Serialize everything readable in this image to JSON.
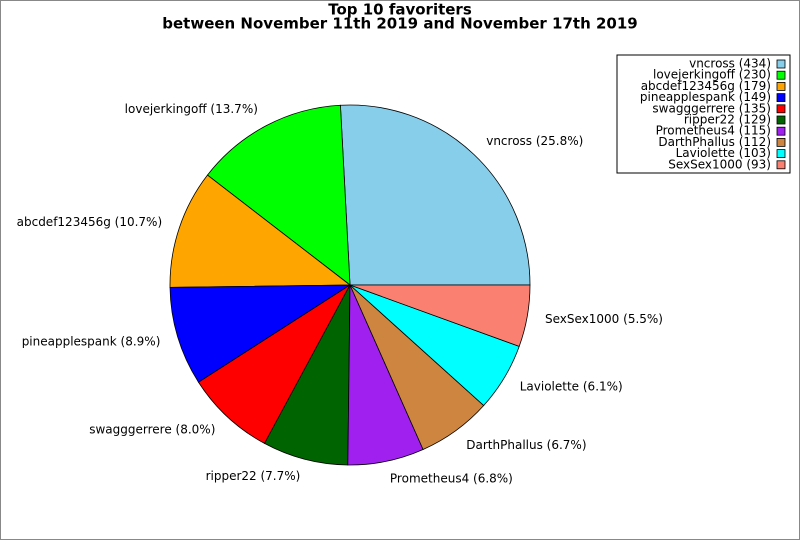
{
  "chart_data": {
    "type": "pie",
    "title": "Top 10 favoriters",
    "subtitle": "between November 11th 2019 and November 17th 2019",
    "categories": [
      "vncross",
      "lovejerkingoff",
      "abcdef123456g",
      "pineapplespank",
      "swagggerrere",
      "ripper22",
      "Prometheus4",
      "DarthPhallus",
      "Laviolette",
      "SexSex1000"
    ],
    "values": [
      434,
      230,
      179,
      149,
      135,
      129,
      115,
      112,
      103,
      93
    ],
    "value_labels": [
      "vncross (25.8%)",
      "lovejerkingoff (13.7%)",
      "abcdef123456g (10.7%)",
      "pineapplespank (8.9%)",
      "swagggerrere (8.0%)",
      "ripper22 (7.7%)",
      "Prometheus4 (6.8%)",
      "DarthPhallus (6.7%)",
      "Laviolette (6.1%)",
      "SexSex1000 (5.5%)"
    ],
    "legend_labels": [
      "vncross (434)",
      "lovejerkingoff (230)",
      "abcdef123456g (179)",
      "pineapplespank (149)",
      "swagggerrere (135)",
      "ripper22 (129)",
      "Prometheus4 (115)",
      "DarthPhallus (112)",
      "Laviolette (103)",
      "SexSex1000 (93)"
    ],
    "colors": [
      "#87ceeb",
      "#00ff00",
      "#ffa500",
      "#0000ff",
      "#ff0000",
      "#006400",
      "#a020f0",
      "#cd853f",
      "#00ffff",
      "#fa8072"
    ],
    "legend": "upper right"
  }
}
